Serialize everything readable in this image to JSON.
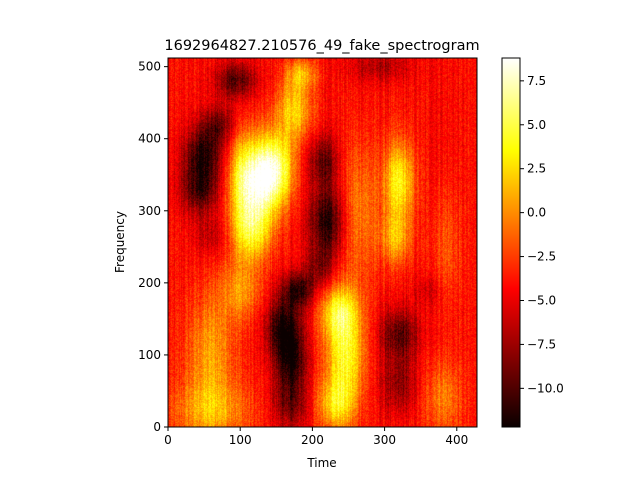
{
  "chart_data": {
    "type": "heatmap",
    "title": "1692964827.210576_49_fake_spectrogram",
    "xlabel": "Time",
    "ylabel": "Frequency",
    "x_range": [
      0,
      428
    ],
    "y_range": [
      0,
      512
    ],
    "x_ticks": [
      0,
      100,
      200,
      300,
      400
    ],
    "y_ticks": [
      0,
      100,
      200,
      300,
      400,
      500
    ],
    "colormap": "hot",
    "colorbar": {
      "range": [
        -12.2,
        8.8
      ],
      "ticks": [
        -10.0,
        -7.5,
        -5.0,
        -2.5,
        0.0,
        2.5,
        5.0,
        7.5
      ],
      "tick_labels": [
        "−10.0",
        "−7.5",
        "−5.0",
        "−2.5",
        "0.0",
        "2.5",
        "5.0",
        "7.5"
      ]
    },
    "background_level": -4.5,
    "features": [
      {
        "kind": "dark",
        "t": 50,
        "f": 380,
        "st": 20,
        "sf": 25,
        "a": -6.5
      },
      {
        "kind": "dark",
        "t": 45,
        "f": 330,
        "st": 20,
        "sf": 25,
        "a": -6.0
      },
      {
        "kind": "dark",
        "t": 70,
        "f": 420,
        "st": 18,
        "sf": 18,
        "a": -4.5
      },
      {
        "kind": "dark",
        "t": 95,
        "f": 480,
        "st": 20,
        "sf": 18,
        "a": -5.5
      },
      {
        "kind": "dark",
        "t": 60,
        "f": 265,
        "st": 16,
        "sf": 20,
        "a": -2.5
      },
      {
        "kind": "bright",
        "t": 125,
        "f": 340,
        "st": 22,
        "sf": 40,
        "a": 10.5
      },
      {
        "kind": "bright",
        "t": 150,
        "f": 360,
        "st": 18,
        "sf": 35,
        "a": 8.0
      },
      {
        "kind": "bright",
        "t": 115,
        "f": 270,
        "st": 20,
        "sf": 30,
        "a": 7.0
      },
      {
        "kind": "bright",
        "t": 100,
        "f": 350,
        "st": 15,
        "sf": 50,
        "a": 4.5
      },
      {
        "kind": "bright",
        "t": 175,
        "f": 440,
        "st": 18,
        "sf": 30,
        "a": 6.5
      },
      {
        "kind": "bright",
        "t": 185,
        "f": 490,
        "st": 15,
        "sf": 15,
        "a": 5.0
      },
      {
        "kind": "bright",
        "t": 60,
        "f": 100,
        "st": 25,
        "sf": 60,
        "a": 5.0
      },
      {
        "kind": "bright",
        "t": 60,
        "f": 20,
        "st": 40,
        "sf": 30,
        "a": 4.5
      },
      {
        "kind": "bright",
        "t": 100,
        "f": 190,
        "st": 20,
        "sf": 30,
        "a": 4.5
      },
      {
        "kind": "dark",
        "t": 160,
        "f": 140,
        "st": 18,
        "sf": 28,
        "a": -7.0
      },
      {
        "kind": "dark",
        "t": 170,
        "f": 90,
        "st": 16,
        "sf": 30,
        "a": -7.0
      },
      {
        "kind": "dark",
        "t": 180,
        "f": 190,
        "st": 16,
        "sf": 18,
        "a": -6.5
      },
      {
        "kind": "dark",
        "t": 170,
        "f": 30,
        "st": 18,
        "sf": 25,
        "a": -4.5
      },
      {
        "kind": "dark",
        "t": 220,
        "f": 285,
        "st": 18,
        "sf": 35,
        "a": -7.0
      },
      {
        "kind": "dark",
        "t": 215,
        "f": 370,
        "st": 15,
        "sf": 25,
        "a": -5.0
      },
      {
        "kind": "dark",
        "t": 210,
        "f": 220,
        "st": 14,
        "sf": 20,
        "a": -3.5
      },
      {
        "kind": "bright",
        "t": 245,
        "f": 100,
        "st": 20,
        "sf": 55,
        "a": 8.5
      },
      {
        "kind": "bright",
        "t": 235,
        "f": 160,
        "st": 18,
        "sf": 25,
        "a": 6.0
      },
      {
        "kind": "bright",
        "t": 230,
        "f": 30,
        "st": 18,
        "sf": 25,
        "a": 5.5
      },
      {
        "kind": "bright",
        "t": 265,
        "f": 300,
        "st": 18,
        "sf": 70,
        "a": 4.0
      },
      {
        "kind": "bright",
        "t": 320,
        "f": 340,
        "st": 15,
        "sf": 40,
        "a": 8.0
      },
      {
        "kind": "bright",
        "t": 315,
        "f": 260,
        "st": 15,
        "sf": 25,
        "a": 5.0
      },
      {
        "kind": "dark",
        "t": 320,
        "f": 130,
        "st": 20,
        "sf": 25,
        "a": -5.5
      },
      {
        "kind": "dark",
        "t": 320,
        "f": 60,
        "st": 20,
        "sf": 30,
        "a": -4.0
      },
      {
        "kind": "dark",
        "t": 360,
        "f": 190,
        "st": 14,
        "sf": 15,
        "a": -2.0
      },
      {
        "kind": "dark",
        "t": 295,
        "f": 500,
        "st": 30,
        "sf": 15,
        "a": -3.0
      },
      {
        "kind": "bright",
        "t": 380,
        "f": 40,
        "st": 20,
        "sf": 40,
        "a": 4.0
      },
      {
        "kind": "bright",
        "t": 385,
        "f": 250,
        "st": 15,
        "sf": 60,
        "a": 2.5
      }
    ]
  }
}
